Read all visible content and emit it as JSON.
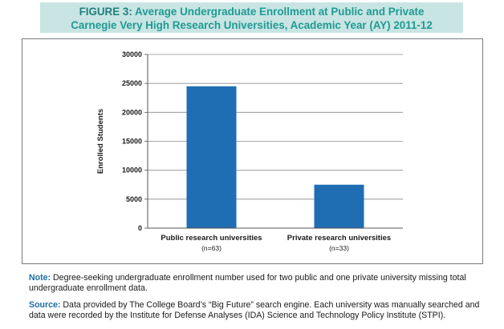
{
  "figure": {
    "title_lead": "FIGURE 3:",
    "title_rest": "Average Undergraduate Enrollment at Public and Private",
    "title_line2": "Carnegie Very High Research Universities, Academic Year (AY) 2011-12"
  },
  "chart_data": {
    "type": "bar",
    "categories": [
      "Public research universities",
      "Private research universities"
    ],
    "category_sublabels": [
      "(n=63)",
      "(n=33)"
    ],
    "values": [
      24500,
      7500
    ],
    "ylabel": "Enrolled Students",
    "ylim": [
      0,
      30000
    ],
    "yticks": [
      0,
      5000,
      10000,
      15000,
      20000,
      25000,
      30000
    ],
    "ytick_labels": [
      "0",
      "5000",
      "10000",
      "15000",
      "20000",
      "25000",
      "30000"
    ],
    "grid": true,
    "bar_color": "#1f6db3"
  },
  "notes": {
    "note_label": "Note:",
    "note_text": " Degree-seeking undergraduate enrollment number used for two public and one private university missing total undergraduate enrollment data.",
    "source_label": "Source:",
    "source_text": " Data provided by The College Board’s “Big Future” search engine. Each university was manually searched and data were recorded by the Institute for Defense Analyses (IDA) Science and Technology Policy Institute (STPI)."
  }
}
